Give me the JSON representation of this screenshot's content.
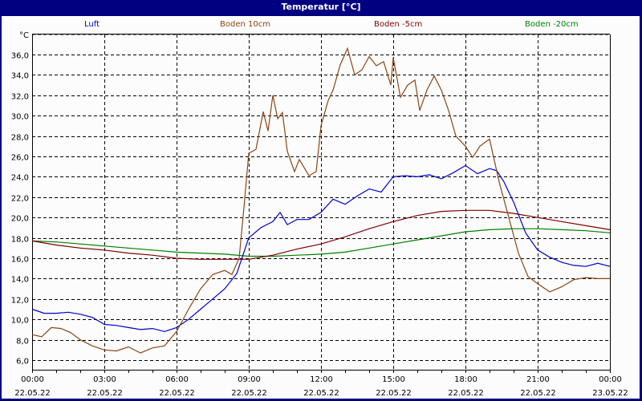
{
  "window": {
    "title": "Temperatur [°C]"
  },
  "chart_data": {
    "type": "line",
    "title": "Temperatur [°C]",
    "ylabel": "°C",
    "xlabel": "",
    "ylim": [
      5.0,
      38.0
    ],
    "grid": true,
    "legend_position": "top",
    "yticks": [
      "36,0",
      "34,0",
      "32,0",
      "30,0",
      "28,0",
      "26,0",
      "24,0",
      "22,0",
      "20,0",
      "18,0",
      "16,0",
      "14,0",
      "12,0",
      "10,0",
      "8,0",
      "6,0"
    ],
    "ytick_values": [
      36,
      34,
      32,
      30,
      28,
      26,
      24,
      22,
      20,
      18,
      16,
      14,
      12,
      10,
      8,
      6
    ],
    "xticks": [
      {
        "time": "00:00",
        "date": "22.05.22",
        "h": 0
      },
      {
        "time": "03:00",
        "date": "22.05.22",
        "h": 3
      },
      {
        "time": "06:00",
        "date": "22.05.22",
        "h": 6
      },
      {
        "time": "09:00",
        "date": "22.05.22",
        "h": 9
      },
      {
        "time": "12:00",
        "date": "22.05.22",
        "h": 12
      },
      {
        "time": "15:00",
        "date": "22.05.22",
        "h": 15
      },
      {
        "time": "18:00",
        "date": "22.05.22",
        "h": 18
      },
      {
        "time": "21:00",
        "date": "22.05.22",
        "h": 21
      },
      {
        "time": "00:00",
        "date": "23.05.22",
        "h": 24
      }
    ],
    "x_unit": "hours since 22.05.22 00:00",
    "series": [
      {
        "name": "Luft",
        "color": "#0000cc",
        "x": [
          0,
          0.5,
          1,
          1.5,
          2,
          2.5,
          3,
          3.5,
          4,
          4.5,
          5,
          5.5,
          6,
          6.5,
          7,
          7.5,
          8,
          8.5,
          9,
          9.5,
          10,
          10.3,
          10.6,
          11,
          11.5,
          12,
          12.5,
          13,
          13.5,
          14,
          14.5,
          15,
          15.5,
          16,
          16.5,
          17,
          17.5,
          18,
          18.5,
          19,
          19.3,
          19.6,
          20,
          20.5,
          21,
          21.5,
          22,
          22.5,
          23,
          23.5,
          24
        ],
        "values": [
          11.0,
          10.6,
          10.6,
          10.7,
          10.5,
          10.2,
          9.5,
          9.4,
          9.2,
          9.0,
          9.1,
          8.8,
          9.2,
          10.0,
          11.0,
          12.0,
          13.0,
          14.5,
          18.0,
          19.0,
          19.6,
          20.5,
          19.3,
          19.8,
          19.8,
          20.5,
          21.8,
          21.3,
          22.1,
          22.8,
          22.5,
          24.0,
          24.1,
          24.0,
          24.2,
          23.8,
          24.4,
          25.1,
          24.3,
          24.8,
          24.6,
          23.5,
          21.5,
          18.5,
          16.8,
          16.1,
          15.6,
          15.3,
          15.2,
          15.5,
          15.2
        ]
      },
      {
        "name": "Boden 10cm",
        "color": "#8b4513",
        "x": [
          0,
          0.4,
          0.8,
          1.2,
          1.6,
          2,
          2.5,
          3,
          3.5,
          4,
          4.5,
          5,
          5.5,
          6,
          6.5,
          7,
          7.5,
          8,
          8.3,
          8.6,
          8.8,
          9,
          9.3,
          9.6,
          9.8,
          10,
          10.2,
          10.4,
          10.6,
          10.9,
          11.1,
          11.5,
          11.8,
          12,
          12.3,
          12.5,
          12.8,
          13.1,
          13.4,
          13.7,
          14,
          14.3,
          14.6,
          14.9,
          15,
          15.3,
          15.6,
          15.9,
          16.1,
          16.4,
          16.7,
          17,
          17.3,
          17.6,
          18,
          18.3,
          18.6,
          19,
          19.4,
          19.8,
          20.2,
          20.6,
          21,
          21.5,
          22,
          22.5,
          23,
          23.5,
          24
        ],
        "values": [
          8.5,
          8.3,
          9.2,
          9.1,
          8.7,
          8.0,
          7.4,
          7.0,
          6.9,
          7.3,
          6.7,
          7.2,
          7.4,
          8.8,
          11.0,
          13.0,
          14.4,
          14.8,
          14.4,
          16.0,
          21.0,
          26.3,
          26.7,
          30.4,
          28.5,
          32.0,
          29.7,
          30.3,
          26.5,
          24.5,
          25.7,
          24.1,
          24.5,
          29.0,
          31.5,
          32.5,
          35.0,
          36.6,
          34.0,
          34.5,
          35.8,
          34.9,
          35.3,
          33.0,
          35.7,
          31.8,
          33.0,
          33.5,
          30.5,
          32.5,
          33.9,
          32.5,
          30.5,
          28.0,
          27.0,
          25.9,
          27.0,
          27.7,
          23.5,
          20.0,
          16.5,
          14.2,
          13.5,
          12.7,
          13.2,
          13.9,
          14.1,
          14.0,
          14.0
        ]
      },
      {
        "name": "Boden -5cm",
        "color": "#800000",
        "x": [
          0,
          1,
          2,
          3,
          4,
          5,
          6,
          7,
          8,
          9,
          10,
          11,
          12,
          13,
          14,
          15,
          16,
          17,
          18,
          19,
          20,
          21,
          22,
          23,
          24
        ],
        "values": [
          17.7,
          17.3,
          17.0,
          16.8,
          16.5,
          16.3,
          16.0,
          15.9,
          15.9,
          15.9,
          16.3,
          16.9,
          17.4,
          18.1,
          18.9,
          19.6,
          20.2,
          20.6,
          20.7,
          20.7,
          20.4,
          20.0,
          19.6,
          19.2,
          18.8
        ]
      },
      {
        "name": "Boden -20cm",
        "color": "#008000",
        "x": [
          0,
          1,
          2,
          3,
          4,
          5,
          6,
          7,
          8,
          9,
          10,
          11,
          12,
          13,
          14,
          15,
          16,
          17,
          18,
          19,
          20,
          21,
          22,
          23,
          24
        ],
        "values": [
          17.7,
          17.6,
          17.4,
          17.2,
          17.0,
          16.8,
          16.6,
          16.5,
          16.4,
          16.2,
          16.2,
          16.3,
          16.4,
          16.6,
          17.0,
          17.4,
          17.8,
          18.2,
          18.6,
          18.8,
          18.9,
          18.9,
          18.8,
          18.7,
          18.5
        ]
      }
    ]
  }
}
